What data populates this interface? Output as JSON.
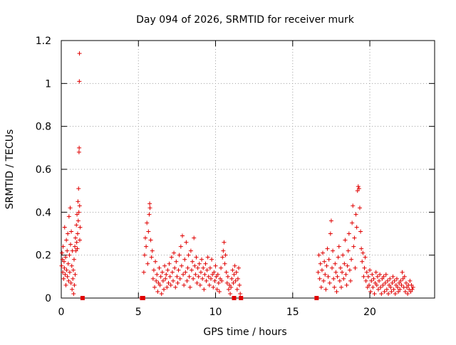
{
  "chart_data": {
    "type": "scatter",
    "title": "Day 094 of 2026, SRMTID for receiver murk",
    "xlabel": "GPS time / hours",
    "ylabel": "SRMTID / TECUs",
    "xlim": [
      0,
      24.2
    ],
    "ylim": [
      0,
      1.2
    ],
    "x_ticks": [
      0,
      5,
      10,
      15,
      20
    ],
    "x_tick_labels": [
      "0",
      "5",
      "10",
      "15",
      "20"
    ],
    "y_ticks": [
      0,
      0.2,
      0.4,
      0.6,
      0.8,
      1,
      1.2
    ],
    "y_tick_labels": [
      "0",
      "0.2",
      "0.4",
      "0.6",
      "0.8",
      "1",
      "1.2"
    ],
    "grid": true,
    "marker": "plus",
    "color": "#e00000",
    "series": [
      {
        "name": "SRMTID",
        "points": [
          [
            0.02,
            0.15
          ],
          [
            0.05,
            0.21
          ],
          [
            0.08,
            0.18
          ],
          [
            0.1,
            0.12
          ],
          [
            0.12,
            0.24
          ],
          [
            0.15,
            0.09
          ],
          [
            0.18,
            0.17
          ],
          [
            0.2,
            0.14
          ],
          [
            0.22,
            0.33
          ],
          [
            0.25,
            0.11
          ],
          [
            0.28,
            0.19
          ],
          [
            0.3,
            0.06
          ],
          [
            0.33,
            0.27
          ],
          [
            0.35,
            0.13
          ],
          [
            0.38,
            0.22
          ],
          [
            0.4,
            0.1
          ],
          [
            0.42,
            0.3
          ],
          [
            0.45,
            0.16
          ],
          [
            0.48,
            0.08
          ],
          [
            0.5,
            0.38
          ],
          [
            0.53,
            0.2
          ],
          [
            0.55,
            0.12
          ],
          [
            0.58,
            0.42
          ],
          [
            0.6,
            0.25
          ],
          [
            0.63,
            0.07
          ],
          [
            0.65,
            0.31
          ],
          [
            0.68,
            0.15
          ],
          [
            0.7,
            0.04
          ],
          [
            0.72,
            0.22
          ],
          [
            0.75,
            0.09
          ],
          [
            0.78,
            0.13
          ],
          [
            0.8,
            0.02
          ],
          [
            0.83,
            0.18
          ],
          [
            0.85,
            0.06
          ],
          [
            0.88,
            0.24
          ],
          [
            0.9,
            0.11
          ],
          [
            0.92,
            0.28
          ],
          [
            0.95,
            0.22
          ],
          [
            0.98,
            0.34
          ],
          [
            1.0,
            0.26
          ],
          [
            1.02,
            0.39
          ],
          [
            1.04,
            0.23
          ],
          [
            1.06,
            0.3
          ],
          [
            1.08,
            0.45
          ],
          [
            1.1,
            0.36
          ],
          [
            1.12,
            0.51
          ],
          [
            1.14,
            0.4
          ],
          [
            1.15,
            0.68
          ],
          [
            1.16,
            0.7
          ],
          [
            1.17,
            1.01
          ],
          [
            1.18,
            1.14
          ],
          [
            1.19,
            0.43
          ],
          [
            1.2,
            0.27
          ],
          [
            1.22,
            0.33
          ],
          [
            1.38,
            0.0
          ],
          [
            5.2,
            0.0
          ],
          [
            5.28,
            0.0
          ],
          [
            5.35,
            0.12
          ],
          [
            5.4,
            0.2
          ],
          [
            5.45,
            0.28
          ],
          [
            5.5,
            0.24
          ],
          [
            5.55,
            0.35
          ],
          [
            5.6,
            0.16
          ],
          [
            5.65,
            0.31
          ],
          [
            5.7,
            0.39
          ],
          [
            5.73,
            0.44
          ],
          [
            5.75,
            0.42
          ],
          [
            5.8,
            0.27
          ],
          [
            5.85,
            0.19
          ],
          [
            5.9,
            0.22
          ],
          [
            5.95,
            0.09
          ],
          [
            6.0,
            0.13
          ],
          [
            6.05,
            0.05
          ],
          [
            6.1,
            0.17
          ],
          [
            6.15,
            0.08
          ],
          [
            6.2,
            0.11
          ],
          [
            6.25,
            0.03
          ],
          [
            6.3,
            0.07
          ],
          [
            6.35,
            0.14
          ],
          [
            6.4,
            0.06
          ],
          [
            6.45,
            0.1
          ],
          [
            6.5,
            0.02
          ],
          [
            6.55,
            0.12
          ],
          [
            6.6,
            0.08
          ],
          [
            6.65,
            0.04
          ],
          [
            6.7,
            0.15
          ],
          [
            6.75,
            0.09
          ],
          [
            6.8,
            0.11
          ],
          [
            6.85,
            0.05
          ],
          [
            6.9,
            0.13
          ],
          [
            6.95,
            0.07
          ],
          [
            7.0,
            0.16
          ],
          [
            7.05,
            0.1
          ],
          [
            7.1,
            0.06
          ],
          [
            7.15,
            0.19
          ],
          [
            7.2,
            0.12
          ],
          [
            7.25,
            0.08
          ],
          [
            7.3,
            0.21
          ],
          [
            7.35,
            0.14
          ],
          [
            7.4,
            0.05
          ],
          [
            7.45,
            0.17
          ],
          [
            7.5,
            0.1
          ],
          [
            7.55,
            0.07
          ],
          [
            7.6,
            0.13
          ],
          [
            7.65,
            0.2
          ],
          [
            7.7,
            0.09
          ],
          [
            7.75,
            0.24
          ],
          [
            7.8,
            0.15
          ],
          [
            7.85,
            0.29
          ],
          [
            7.9,
            0.11
          ],
          [
            7.95,
            0.06
          ],
          [
            8.0,
            0.18
          ],
          [
            8.05,
            0.12
          ],
          [
            8.1,
            0.26
          ],
          [
            8.15,
            0.08
          ],
          [
            8.2,
            0.14
          ],
          [
            8.25,
            0.2
          ],
          [
            8.3,
            0.1
          ],
          [
            8.35,
            0.05
          ],
          [
            8.4,
            0.22
          ],
          [
            8.45,
            0.13
          ],
          [
            8.5,
            0.17
          ],
          [
            8.55,
            0.09
          ],
          [
            8.6,
            0.28
          ],
          [
            8.65,
            0.15
          ],
          [
            8.7,
            0.11
          ],
          [
            8.75,
            0.19
          ],
          [
            8.8,
            0.07
          ],
          [
            8.85,
            0.14
          ],
          [
            8.9,
            0.1
          ],
          [
            8.95,
            0.16
          ],
          [
            9.0,
            0.06
          ],
          [
            9.05,
            0.12
          ],
          [
            9.1,
            0.18
          ],
          [
            9.15,
            0.09
          ],
          [
            9.2,
            0.14
          ],
          [
            9.25,
            0.04
          ],
          [
            9.3,
            0.11
          ],
          [
            9.35,
            0.16
          ],
          [
            9.4,
            0.08
          ],
          [
            9.45,
            0.13
          ],
          [
            9.5,
            0.19
          ],
          [
            9.55,
            0.1
          ],
          [
            9.6,
            0.06
          ],
          [
            9.65,
            0.14
          ],
          [
            9.7,
            0.09
          ],
          [
            9.75,
            0.18
          ],
          [
            9.8,
            0.11
          ],
          [
            9.85,
            0.05
          ],
          [
            9.9,
            0.12
          ],
          [
            9.95,
            0.08
          ],
          [
            10.0,
            0.15
          ],
          [
            10.05,
            0.1
          ],
          [
            10.1,
            0.04
          ],
          [
            10.15,
            0.11
          ],
          [
            10.2,
            0.07
          ],
          [
            10.25,
            0.03
          ],
          [
            10.3,
            0.09
          ],
          [
            10.35,
            0.14
          ],
          [
            10.4,
            0.08
          ],
          [
            10.45,
            0.19
          ],
          [
            10.5,
            0.22
          ],
          [
            10.55,
            0.26
          ],
          [
            10.6,
            0.16
          ],
          [
            10.65,
            0.2
          ],
          [
            10.7,
            0.12
          ],
          [
            10.75,
            0.07
          ],
          [
            10.8,
            0.1
          ],
          [
            10.85,
            0.04
          ],
          [
            10.9,
            0.06
          ],
          [
            10.95,
            0.02
          ],
          [
            11.0,
            0.05
          ],
          [
            11.05,
            0.09
          ],
          [
            11.1,
            0.13
          ],
          [
            11.15,
            0.07
          ],
          [
            11.2,
            0.11
          ],
          [
            11.25,
            0.15
          ],
          [
            11.3,
            0.08
          ],
          [
            11.35,
            0.12
          ],
          [
            11.4,
            0.04
          ],
          [
            11.45,
            0.09
          ],
          [
            11.5,
            0.14
          ],
          [
            11.55,
            0.06
          ],
          [
            11.6,
            0.02
          ],
          [
            11.65,
            0.0
          ],
          [
            11.2,
            0.0
          ],
          [
            16.55,
            0.0
          ],
          [
            16.65,
            0.12
          ],
          [
            16.7,
            0.2
          ],
          [
            16.75,
            0.09
          ],
          [
            16.8,
            0.16
          ],
          [
            16.85,
            0.05
          ],
          [
            16.9,
            0.13
          ],
          [
            16.95,
            0.21
          ],
          [
            17.0,
            0.08
          ],
          [
            17.05,
            0.17
          ],
          [
            17.1,
            0.11
          ],
          [
            17.15,
            0.04
          ],
          [
            17.2,
            0.15
          ],
          [
            17.25,
            0.23
          ],
          [
            17.3,
            0.1
          ],
          [
            17.35,
            0.18
          ],
          [
            17.4,
            0.07
          ],
          [
            17.45,
            0.3
          ],
          [
            17.5,
            0.36
          ],
          [
            17.55,
            0.14
          ],
          [
            17.6,
            0.22
          ],
          [
            17.65,
            0.09
          ],
          [
            17.7,
            0.05
          ],
          [
            17.75,
            0.16
          ],
          [
            17.8,
            0.12
          ],
          [
            17.85,
            0.03
          ],
          [
            17.9,
            0.1
          ],
          [
            17.95,
            0.19
          ],
          [
            18.0,
            0.24
          ],
          [
            18.05,
            0.08
          ],
          [
            18.1,
            0.14
          ],
          [
            18.15,
            0.05
          ],
          [
            18.2,
            0.12
          ],
          [
            18.25,
            0.2
          ],
          [
            18.3,
            0.09
          ],
          [
            18.35,
            0.16
          ],
          [
            18.4,
            0.27
          ],
          [
            18.45,
            0.11
          ],
          [
            18.5,
            0.06
          ],
          [
            18.55,
            0.15
          ],
          [
            18.6,
            0.22
          ],
          [
            18.65,
            0.3
          ],
          [
            18.7,
            0.13
          ],
          [
            18.75,
            0.08
          ],
          [
            18.8,
            0.18
          ],
          [
            18.85,
            0.35
          ],
          [
            18.9,
            0.43
          ],
          [
            18.95,
            0.24
          ],
          [
            19.0,
            0.28
          ],
          [
            19.05,
            0.14
          ],
          [
            19.1,
            0.39
          ],
          [
            19.15,
            0.33
          ],
          [
            19.2,
            0.5
          ],
          [
            19.25,
            0.52
          ],
          [
            19.3,
            0.51
          ],
          [
            19.35,
            0.42
          ],
          [
            19.4,
            0.31
          ],
          [
            19.45,
            0.23
          ],
          [
            19.5,
            0.17
          ],
          [
            19.55,
            0.21
          ],
          [
            19.6,
            0.1
          ],
          [
            19.65,
            0.14
          ],
          [
            19.7,
            0.19
          ],
          [
            19.75,
            0.08
          ],
          [
            19.8,
            0.12
          ],
          [
            19.85,
            0.05
          ],
          [
            19.9,
            0.1
          ],
          [
            19.95,
            0.06
          ],
          [
            20.0,
            0.13
          ],
          [
            20.05,
            0.03
          ],
          [
            20.1,
            0.08
          ],
          [
            20.15,
            0.11
          ],
          [
            20.2,
            0.05
          ],
          [
            20.25,
            0.09
          ],
          [
            20.3,
            0.02
          ],
          [
            20.35,
            0.07
          ],
          [
            20.4,
            0.12
          ],
          [
            20.45,
            0.06
          ],
          [
            20.5,
            0.1
          ],
          [
            20.55,
            0.04
          ],
          [
            20.6,
            0.08
          ],
          [
            20.65,
            0.11
          ],
          [
            20.7,
            0.05
          ],
          [
            20.75,
            0.02
          ],
          [
            20.8,
            0.09
          ],
          [
            20.85,
            0.06
          ],
          [
            20.9,
            0.1
          ],
          [
            20.95,
            0.03
          ],
          [
            21.0,
            0.07
          ],
          [
            21.05,
            0.11
          ],
          [
            21.1,
            0.04
          ],
          [
            21.15,
            0.08
          ],
          [
            21.2,
            0.02
          ],
          [
            21.25,
            0.06
          ],
          [
            21.3,
            0.09
          ],
          [
            21.35,
            0.05
          ],
          [
            21.4,
            0.03
          ],
          [
            21.45,
            0.07
          ],
          [
            21.5,
            0.1
          ],
          [
            21.55,
            0.04
          ],
          [
            21.6,
            0.08
          ],
          [
            21.65,
            0.02
          ],
          [
            21.7,
            0.06
          ],
          [
            21.75,
            0.09
          ],
          [
            21.8,
            0.05
          ],
          [
            21.85,
            0.03
          ],
          [
            21.9,
            0.07
          ],
          [
            21.95,
            0.04
          ],
          [
            22.0,
            0.08
          ],
          [
            22.05,
            0.06
          ],
          [
            22.1,
            0.12
          ],
          [
            22.15,
            0.09
          ],
          [
            22.2,
            0.05
          ],
          [
            22.25,
            0.1
          ],
          [
            22.3,
            0.03
          ],
          [
            22.35,
            0.07
          ],
          [
            22.4,
            0.05
          ],
          [
            22.45,
            0.02
          ],
          [
            22.5,
            0.06
          ],
          [
            22.55,
            0.04
          ],
          [
            22.6,
            0.08
          ],
          [
            22.65,
            0.03
          ],
          [
            22.7,
            0.06
          ],
          [
            22.75,
            0.04
          ],
          [
            22.8,
            0.05
          ]
        ]
      }
    ],
    "zero_square_markers_x": [
      1.38,
      5.24,
      5.3,
      11.2,
      11.65,
      16.55
    ]
  }
}
